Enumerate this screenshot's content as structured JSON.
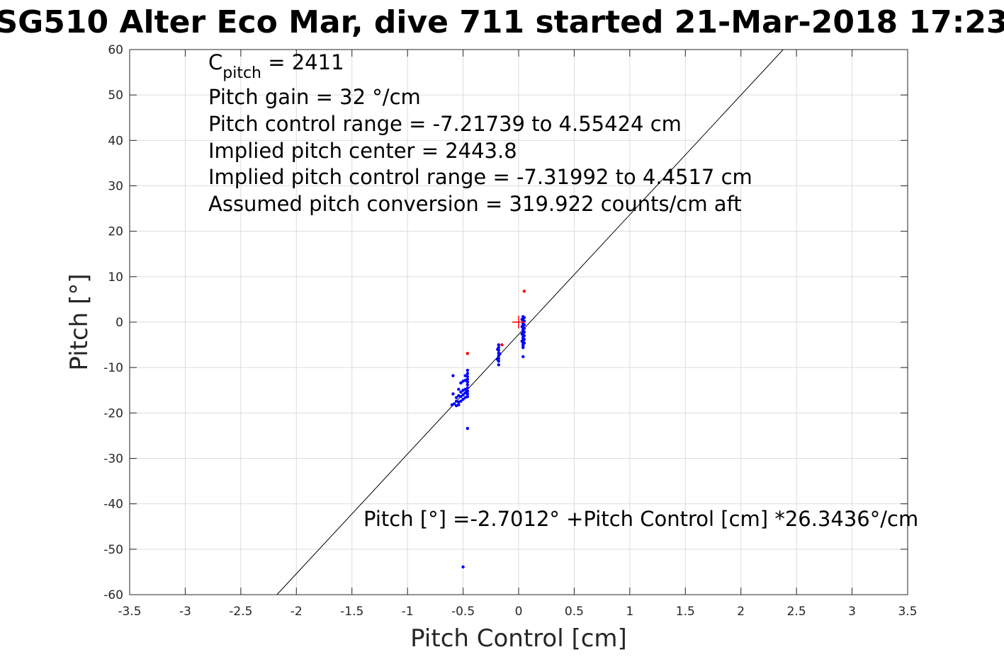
{
  "chart_data": {
    "type": "scatter",
    "title": "SG510 Alter Eco Mar, dive 711 started 21-Mar-2018 17:23",
    "xlabel": "Pitch Control [cm]",
    "ylabel": "Pitch [°]",
    "xlim": [
      -3.5,
      3.5
    ],
    "ylim": [
      -60,
      60
    ],
    "xticks": [
      -3.5,
      -3,
      -2.5,
      -2,
      -1.5,
      -1,
      -0.5,
      0,
      0.5,
      1,
      1.5,
      2,
      2.5,
      3,
      3.5
    ],
    "xtick_labels": [
      "-3.5",
      "-3",
      "-2.5",
      "-2",
      "-1.5",
      "-1",
      "-0.5",
      "0",
      "0.5",
      "1",
      "1.5",
      "2",
      "2.5",
      "3",
      "3.5"
    ],
    "yticks": [
      -60,
      -50,
      -40,
      -30,
      -20,
      -10,
      0,
      10,
      20,
      30,
      40,
      50,
      60
    ],
    "ytick_labels": [
      "-60",
      "-50",
      "-40",
      "-30",
      "-20",
      "-10",
      "0",
      "10",
      "20",
      "30",
      "40",
      "50",
      "60"
    ],
    "grid": true,
    "annotations": {
      "c_pitch_base": "C",
      "c_pitch_sub": "pitch",
      "c_pitch_rest": " = 2411",
      "lines": [
        "Pitch gain = 32 °/cm",
        "Pitch control range = -7.21739 to 4.55424 cm",
        "Implied pitch center = 2443.8",
        "Implied pitch control range = -7.31992 to 4.4517 cm",
        "Assumed pitch conversion = 319.922 counts/cm aft"
      ],
      "fit_equation": "Pitch [°] =-2.7012° +Pitch Control [cm] *26.3436°/cm"
    },
    "fit_line": {
      "intercept": -2.7012,
      "slope": 26.3436,
      "color": "#000000"
    },
    "center_marker": {
      "x": 0,
      "y": 0,
      "color": "#ff0000"
    },
    "series": [
      {
        "color": "#0000ff",
        "points": [
          [
            0.04,
            1.2
          ],
          [
            0.04,
            0.8
          ],
          [
            0.04,
            0.4
          ],
          [
            0.04,
            0.0
          ],
          [
            0.04,
            -0.4
          ],
          [
            0.04,
            -0.8
          ],
          [
            0.04,
            -1.2
          ],
          [
            0.04,
            -1.6
          ],
          [
            0.04,
            -2.0
          ],
          [
            0.04,
            -2.4
          ],
          [
            0.04,
            -2.8
          ],
          [
            0.04,
            -3.2
          ],
          [
            0.04,
            -3.6
          ],
          [
            0.04,
            -4.0
          ],
          [
            0.04,
            -4.4
          ],
          [
            0.04,
            -4.8
          ],
          [
            0.04,
            -5.2
          ],
          [
            0.04,
            -5.6
          ],
          [
            0.04,
            -7.6
          ],
          [
            0.05,
            1.0
          ],
          [
            0.05,
            0.2
          ],
          [
            0.05,
            -0.6
          ],
          [
            0.05,
            -1.4
          ],
          [
            0.05,
            -2.2
          ],
          [
            0.05,
            -3.0
          ],
          [
            0.05,
            -3.8
          ],
          [
            0.05,
            -4.6
          ],
          [
            0.03,
            0.6
          ],
          [
            0.03,
            -1.0
          ],
          [
            0.03,
            -2.6
          ],
          [
            0.03,
            -4.2
          ],
          [
            -0.18,
            -5.0
          ],
          [
            -0.18,
            -5.6
          ],
          [
            -0.18,
            -6.2
          ],
          [
            -0.18,
            -6.8
          ],
          [
            -0.18,
            -7.4
          ],
          [
            -0.18,
            -8.0
          ],
          [
            -0.18,
            -8.6
          ],
          [
            -0.18,
            -9.4
          ],
          [
            -0.17,
            -7.0
          ],
          [
            -0.19,
            -6.0
          ],
          [
            -0.19,
            -8.2
          ],
          [
            -0.46,
            -10.6
          ],
          [
            -0.46,
            -11.3
          ],
          [
            -0.46,
            -12.0
          ],
          [
            -0.46,
            -12.6
          ],
          [
            -0.46,
            -13.2
          ],
          [
            -0.46,
            -13.8
          ],
          [
            -0.46,
            -14.5
          ],
          [
            -0.46,
            -15.2
          ],
          [
            -0.46,
            -15.8
          ],
          [
            -0.46,
            -16.4
          ],
          [
            -0.46,
            -23.4
          ],
          [
            -0.48,
            -11.8
          ],
          [
            -0.48,
            -12.8
          ],
          [
            -0.48,
            -14.8
          ],
          [
            -0.48,
            -15.6
          ],
          [
            -0.48,
            -16.6
          ],
          [
            -0.5,
            -13.0
          ],
          [
            -0.5,
            -15.0
          ],
          [
            -0.5,
            -16.0
          ],
          [
            -0.5,
            -17.0
          ],
          [
            -0.5,
            -53.9
          ],
          [
            -0.52,
            -13.4
          ],
          [
            -0.52,
            -15.4
          ],
          [
            -0.52,
            -16.4
          ],
          [
            -0.52,
            -17.4
          ],
          [
            -0.54,
            -14.8
          ],
          [
            -0.54,
            -16.2
          ],
          [
            -0.54,
            -17.6
          ],
          [
            -0.54,
            -18.2
          ],
          [
            -0.56,
            -16.6
          ],
          [
            -0.56,
            -17.4
          ],
          [
            -0.56,
            -18.4
          ],
          [
            -0.58,
            -18.0
          ],
          [
            -0.59,
            -11.8
          ],
          [
            -0.59,
            -15.8
          ],
          [
            -0.6,
            -18.2
          ]
        ]
      },
      {
        "color": "#ff0000",
        "points": [
          [
            0.05,
            6.8
          ],
          [
            -0.46,
            -6.9
          ],
          [
            -0.15,
            -5.0
          ]
        ]
      }
    ]
  }
}
